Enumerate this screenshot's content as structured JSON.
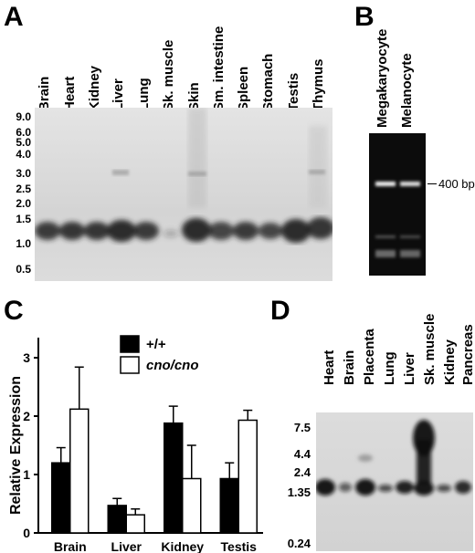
{
  "panel_a": {
    "letter": "A",
    "lanes": [
      "Brain",
      "Heart",
      "Kidney",
      "Liver",
      "Lung",
      "Sk. muscle",
      "Skin",
      "Sm. intestine",
      "Spleen",
      "Stomach",
      "Testis",
      "Thymus"
    ],
    "size_markers": [
      "9.0",
      "6.0",
      "5.0",
      "4.0",
      "3.0",
      "2.5",
      "2.0",
      "1.5",
      "1.0",
      "0.5"
    ]
  },
  "panel_b": {
    "letter": "B",
    "lanes": [
      "Megakaryocyte",
      "Melanocyte"
    ],
    "band_label": "400 bp"
  },
  "panel_c": {
    "letter": "C",
    "chart_data": {
      "type": "bar",
      "categories": [
        "Brain",
        "Liver",
        "Kidney",
        "Testis"
      ],
      "series": [
        {
          "name": "+/+",
          "values": [
            1.2,
            0.47,
            1.88,
            0.93
          ],
          "errors": [
            0.26,
            0.12,
            0.29,
            0.27
          ],
          "color": "#000000"
        },
        {
          "name": "cno/cno",
          "values": [
            2.12,
            0.31,
            0.93,
            1.93
          ],
          "errors": [
            0.72,
            0.1,
            0.57,
            0.17
          ],
          "color": "#ffffff"
        }
      ],
      "ylabel": "Relative Expression",
      "ylim": [
        0,
        3
      ],
      "yticks": [
        "0",
        "1",
        "2",
        "3"
      ],
      "legend": "top"
    }
  },
  "panel_d": {
    "letter": "D",
    "lanes": [
      "Heart",
      "Brain",
      "Placenta",
      "Lung",
      "Liver",
      "Sk. muscle",
      "Kidney",
      "Pancreas"
    ],
    "size_markers": [
      "7.5",
      "4.4",
      "2.4",
      "1.35",
      "0.24"
    ]
  }
}
